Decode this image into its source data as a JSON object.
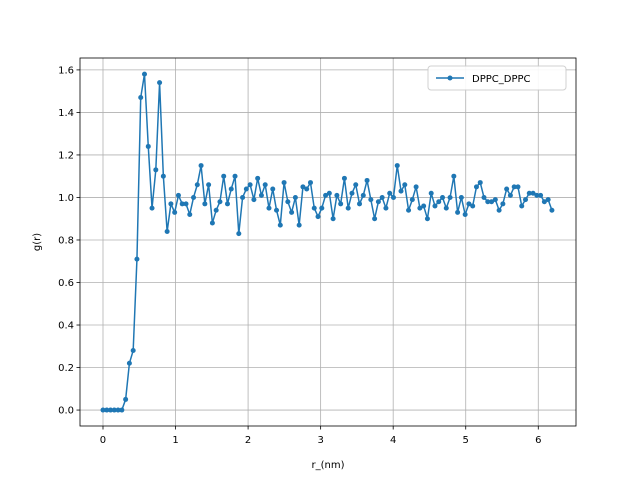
{
  "chart_data": {
    "type": "line",
    "xlabel": "r_(nm)",
    "ylabel": "g(r)",
    "x": [
      0,
      0.052,
      0.104,
      0.156,
      0.208,
      0.26,
      0.312,
      0.364,
      0.416,
      0.468,
      0.52,
      0.572,
      0.624,
      0.676,
      0.728,
      0.78,
      0.832,
      0.884,
      0.936,
      0.988,
      1.04,
      1.092,
      1.144,
      1.196,
      1.248,
      1.3,
      1.352,
      1.404,
      1.456,
      1.508,
      1.56,
      1.612,
      1.664,
      1.716,
      1.768,
      1.82,
      1.872,
      1.924,
      1.976,
      2.028,
      2.08,
      2.132,
      2.184,
      2.236,
      2.288,
      2.34,
      2.392,
      2.444,
      2.496,
      2.548,
      2.6,
      2.652,
      2.704,
      2.756,
      2.808,
      2.86,
      2.912,
      2.964,
      3.016,
      3.068,
      3.12,
      3.172,
      3.224,
      3.276,
      3.328,
      3.38,
      3.432,
      3.484,
      3.536,
      3.588,
      3.64,
      3.692,
      3.744,
      3.796,
      3.848,
      3.9,
      3.952,
      4.004,
      4.056,
      4.108,
      4.16,
      4.212,
      4.264,
      4.316,
      4.368,
      4.42,
      4.472,
      4.524,
      4.576,
      4.628,
      4.68,
      4.732,
      4.784,
      4.836,
      4.888,
      4.94,
      4.992,
      5.044,
      5.096,
      5.148,
      5.2,
      5.252,
      5.304,
      5.356,
      5.408,
      5.46,
      5.512,
      5.564,
      5.616,
      5.668,
      5.72,
      5.772,
      5.824,
      5.876,
      5.928,
      5.98,
      6.032,
      6.084,
      6.136,
      6.188
    ],
    "series": [
      {
        "name": "DPPC_DPPC",
        "color": "#1f77b4",
        "values": [
          0,
          0,
          0,
          0,
          0,
          0,
          0.05,
          0.22,
          0.28,
          0.71,
          1.47,
          1.58,
          1.24,
          0.95,
          1.13,
          1.54,
          1.1,
          0.84,
          0.97,
          0.93,
          1.01,
          0.97,
          0.97,
          0.92,
          1.0,
          1.06,
          1.15,
          0.97,
          1.06,
          0.88,
          0.94,
          0.98,
          1.1,
          0.97,
          1.04,
          1.1,
          0.83,
          1.0,
          1.04,
          1.06,
          0.99,
          1.09,
          1.01,
          1.06,
          0.95,
          1.04,
          0.94,
          0.87,
          1.07,
          0.98,
          0.93,
          1.0,
          0.87,
          1.05,
          1.04,
          1.07,
          0.95,
          0.91,
          0.95,
          1.01,
          1.02,
          0.9,
          1.01,
          0.97,
          1.09,
          0.95,
          1.02,
          1.06,
          0.97,
          1.01,
          1.08,
          0.99,
          0.9,
          0.98,
          1.0,
          0.95,
          1.02,
          1.0,
          1.15,
          1.03,
          1.06,
          0.94,
          0.99,
          1.05,
          0.95,
          0.96,
          0.9,
          1.02,
          0.96,
          0.98,
          1.0,
          0.95,
          1.0,
          1.1,
          0.93,
          1.0,
          0.92,
          0.97,
          0.96,
          1.05,
          1.07,
          1.0,
          0.98,
          0.98,
          0.99,
          0.94,
          0.97,
          1.04,
          1.01,
          1.05,
          1.05,
          0.96,
          0.99,
          1.02,
          1.02,
          1.01,
          1.01,
          0.98,
          0.99,
          0.94
        ]
      }
    ],
    "xlim": [
      -0.317,
      6.52
    ],
    "xticks": [
      0,
      1,
      2,
      3,
      4,
      5,
      6
    ],
    "ylim": [
      -0.075,
      1.656
    ],
    "yticks": [
      {
        "value": 0,
        "label": "0.0"
      },
      {
        "value": 0.2,
        "label": "0.2"
      },
      {
        "value": 0.4,
        "label": "0.4"
      },
      {
        "value": 0.6,
        "label": "0.6"
      },
      {
        "value": 0.8,
        "label": "0.8"
      },
      {
        "value": 1,
        "label": "1.0"
      },
      {
        "value": 1.2,
        "label": "1.2"
      },
      {
        "value": 1.4,
        "label": "1.4"
      },
      {
        "value": 1.6,
        "label": "1.6"
      }
    ],
    "grid": true,
    "legend": "upper right"
  }
}
